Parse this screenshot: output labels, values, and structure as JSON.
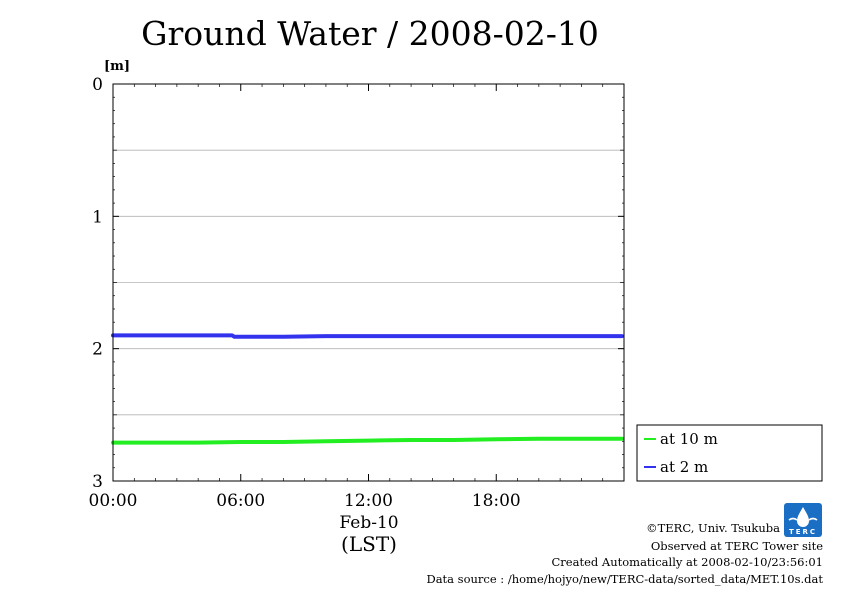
{
  "chart_data": {
    "type": "line",
    "title": "Ground Water / 2008-02-10",
    "ylabel": "[m]",
    "xlabel": "(LST)",
    "date_label": "Feb-10",
    "ylim": [
      0,
      3
    ],
    "y_inverted": true,
    "yticks": [
      "0",
      "1",
      "2",
      "3"
    ],
    "grid_y": [
      0.5,
      1,
      1.5,
      2,
      2.5
    ],
    "xlim": [
      0,
      24
    ],
    "xticks": [
      {
        "value": 0,
        "label": "00:00"
      },
      {
        "value": 6,
        "label": "06:00"
      },
      {
        "value": 12,
        "label": "12:00"
      },
      {
        "value": 18,
        "label": "18:00"
      }
    ],
    "legend_position": "right",
    "series": [
      {
        "name": "at 10 m",
        "color": "#22ee22",
        "x": [
          0,
          2,
          4,
          6,
          8,
          10,
          12,
          14,
          16,
          18,
          20,
          22,
          23.9
        ],
        "y": [
          2.71,
          2.71,
          2.71,
          2.705,
          2.705,
          2.7,
          2.695,
          2.69,
          2.69,
          2.685,
          2.68,
          2.68,
          2.68
        ]
      },
      {
        "name": "at 2 m",
        "color": "#3333ee",
        "x": [
          0,
          2,
          4,
          5.6,
          5.7,
          8,
          10,
          12,
          14,
          16,
          18,
          20,
          22,
          23.9
        ],
        "y": [
          1.9,
          1.9,
          1.9,
          1.9,
          1.91,
          1.91,
          1.905,
          1.905,
          1.905,
          1.905,
          1.905,
          1.905,
          1.905,
          1.905
        ]
      }
    ]
  },
  "credits": {
    "copyright": "©TERC, Univ. Tsukuba",
    "observed": "Observed at TERC Tower site",
    "created": "Created Automatically at 2008-02-10/23:56:01",
    "source": "Data source : /home/hojyo/new/TERC-data/sorted_data/MET.10s.dat",
    "logo": "TERC"
  }
}
